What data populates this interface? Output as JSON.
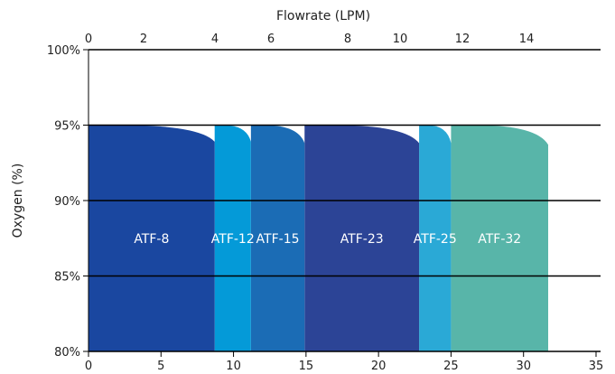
{
  "chart_data": {
    "type": "area",
    "title": "",
    "top_axis": {
      "label": "Flowrate (LPM)",
      "ticks": [
        "0",
        "2",
        "4",
        "6",
        "8",
        "10",
        "12",
        "14"
      ]
    },
    "bottom_axis": {
      "ticks": [
        "0",
        "5",
        "10",
        "15",
        "20",
        "25",
        "30",
        "35"
      ],
      "range": [
        0,
        35
      ]
    },
    "ylabel": "Oxygen (%)",
    "y_ticks": [
      "80%",
      "85%",
      "90%",
      "95%",
      "100%"
    ],
    "ylim": [
      80,
      100
    ],
    "series": [
      {
        "name": "ATF-8",
        "x_start": 0,
        "x_end": 8.7,
        "y_plateau": 95,
        "y_end": 93.9,
        "color": "#1a47a0"
      },
      {
        "name": "ATF-12",
        "x_start": 8.7,
        "x_end": 11.2,
        "y_plateau": 95,
        "y_end": 93.9,
        "color": "#049ad8"
      },
      {
        "name": "ATF-15",
        "x_start": 11.2,
        "x_end": 14.9,
        "y_plateau": 95,
        "y_end": 93.8,
        "color": "#1b6cb5"
      },
      {
        "name": "ATF-23",
        "x_start": 14.9,
        "x_end": 22.8,
        "y_plateau": 95,
        "y_end": 93.8,
        "color": "#2c4496"
      },
      {
        "name": "ATF-25",
        "x_start": 22.8,
        "x_end": 25.0,
        "y_plateau": 95,
        "y_end": 93.8,
        "color": "#2aa9d6"
      },
      {
        "name": "ATF-32",
        "x_start": 25.0,
        "x_end": 31.7,
        "y_plateau": 95,
        "y_end": 93.7,
        "color": "#58b5a9"
      }
    ]
  }
}
